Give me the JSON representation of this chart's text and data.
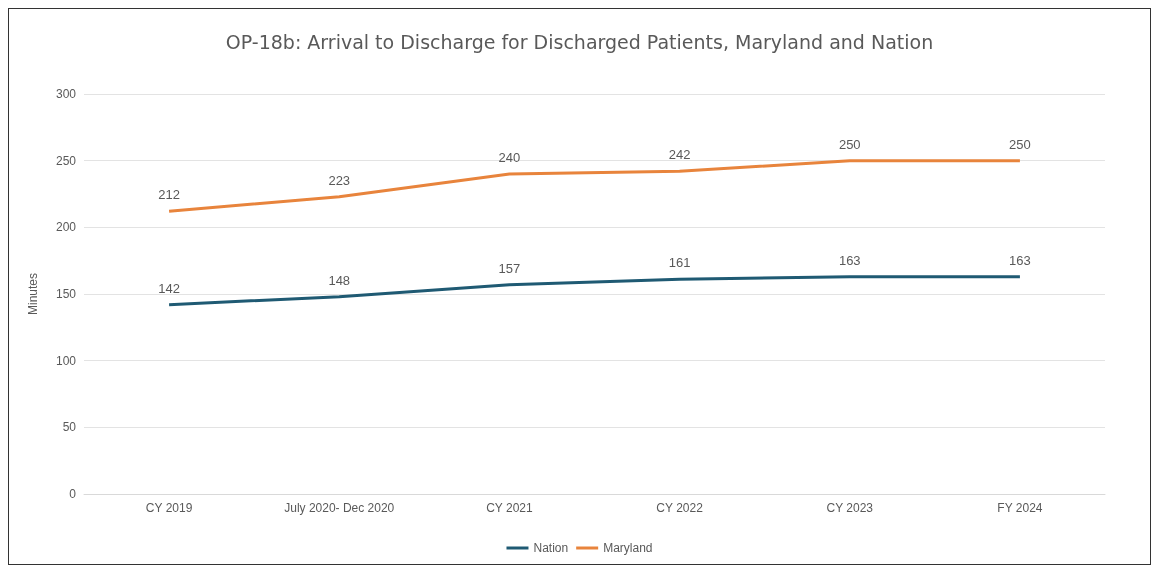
{
  "chart_data": {
    "type": "line",
    "title": "OP-18b: Arrival to Discharge for Discharged Patients, Maryland and Nation",
    "ylabel": "Minutes",
    "categories": [
      "CY 2019",
      "July 2020- Dec 2020",
      "CY 2021",
      "CY 2022",
      "CY 2023",
      "FY 2024"
    ],
    "series": [
      {
        "name": "Nation",
        "color": "#1f5a73",
        "values": [
          142,
          148,
          157,
          161,
          163,
          163
        ]
      },
      {
        "name": "Maryland",
        "color": "#e8843c",
        "values": [
          212,
          223,
          240,
          242,
          250,
          250
        ]
      }
    ],
    "ylim": [
      0,
      300
    ],
    "yticks": [
      0,
      50,
      100,
      150,
      200,
      250,
      300
    ],
    "grid": "y",
    "legend": "bottom",
    "data_labels": true,
    "marker": "none",
    "line_style": "solid"
  }
}
